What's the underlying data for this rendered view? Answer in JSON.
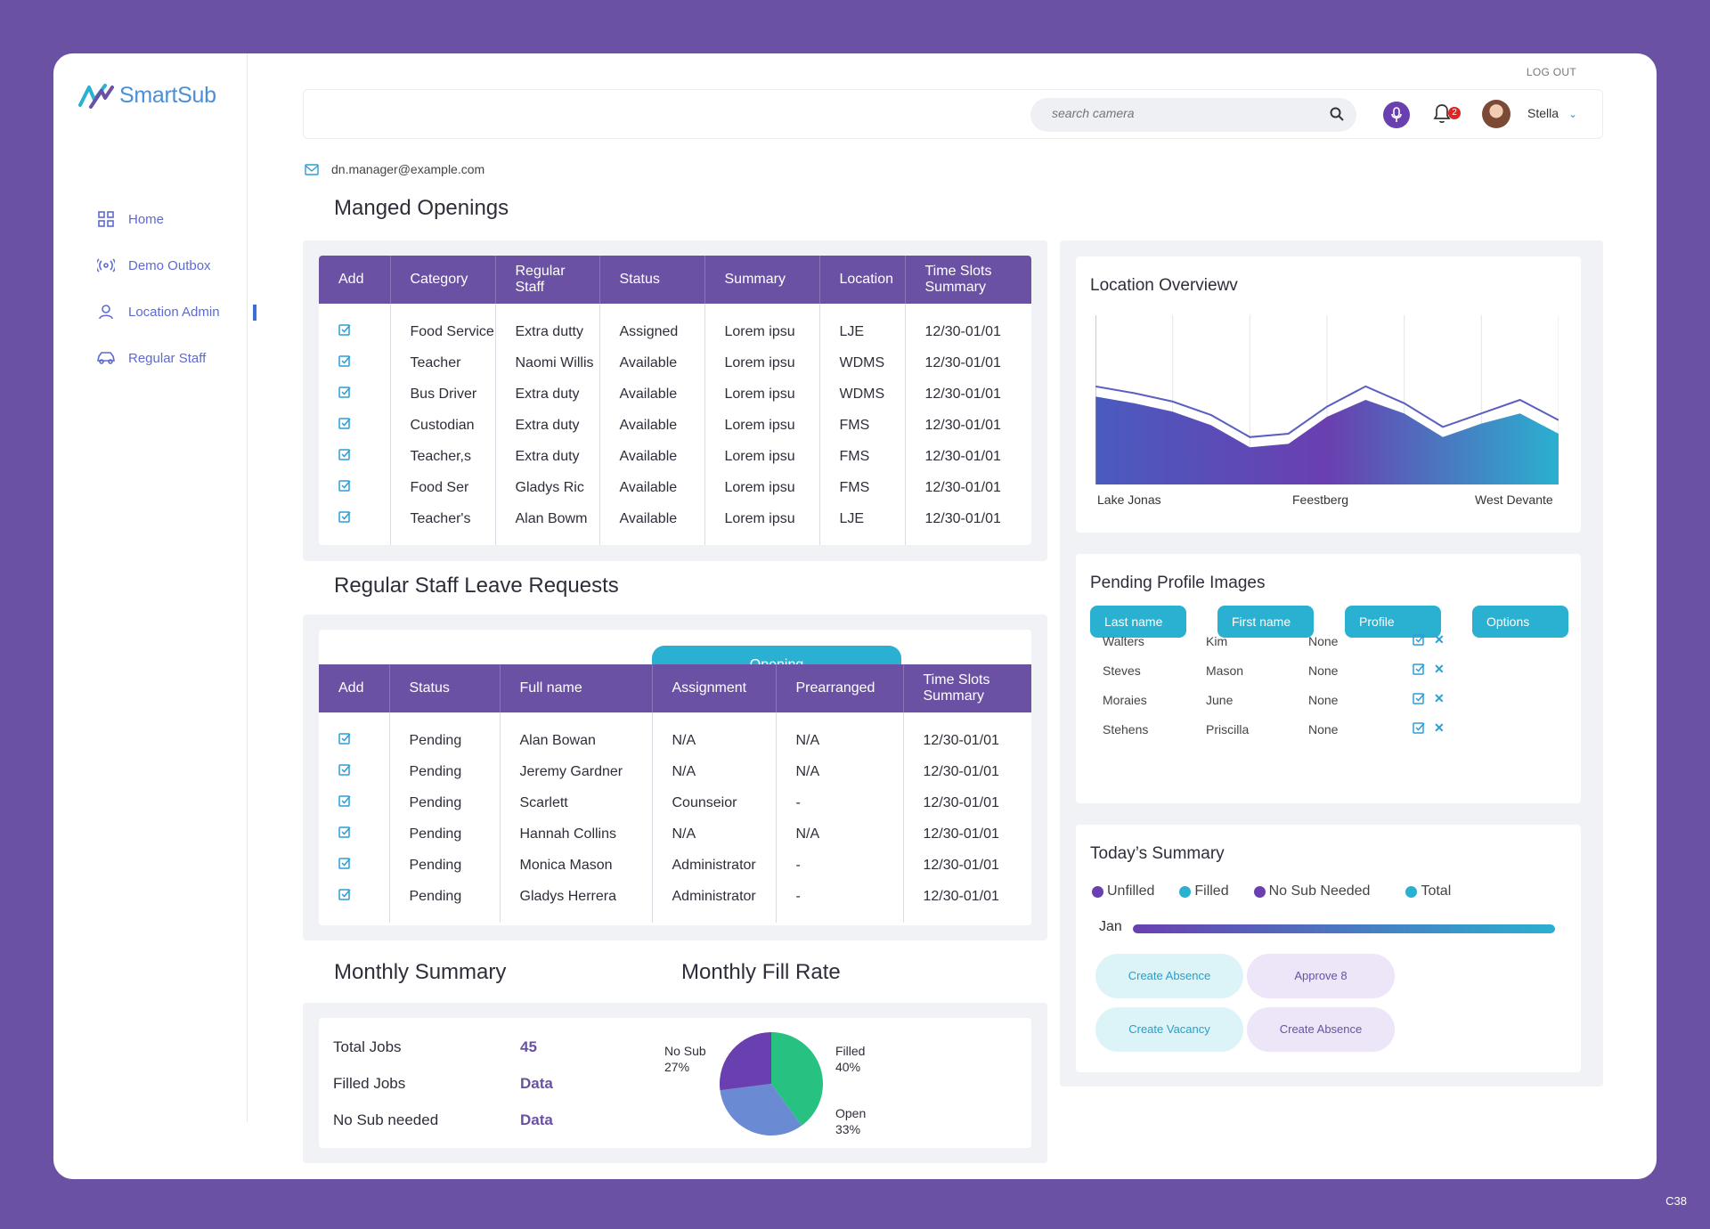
{
  "app": {
    "brand": "SmartSub",
    "corner_code": "C38"
  },
  "sidebar": {
    "items": [
      {
        "label": "Home",
        "icon": "grid-icon"
      },
      {
        "label": "Demo Outbox",
        "icon": "broadcast-icon"
      },
      {
        "label": "Location Admin",
        "icon": "user-pin-icon",
        "active": true
      },
      {
        "label": "Regular Staff",
        "icon": "car-icon"
      }
    ]
  },
  "header": {
    "logout": "LOG OUT",
    "search_placeholder": "search camera",
    "notifications": "2",
    "user_name": "Stella"
  },
  "email": "dn.manager@example.com",
  "openings": {
    "title": "Manged Openings",
    "columns": [
      "Add",
      "Category",
      "Regular Staff",
      "Status",
      "Summary",
      "Location",
      "Time Slots Summary"
    ],
    "rows": [
      [
        "Food Service",
        "Extra dutty",
        "Assigned",
        "Lorem ipsu",
        "LJE",
        "12/30-01/01"
      ],
      [
        "Teacher",
        "Naomi Willis",
        "Available",
        "Lorem ipsu",
        "WDMS",
        "12/30-01/01"
      ],
      [
        "Bus Driver",
        "Extra duty",
        "Available",
        "Lorem ipsu",
        "WDMS",
        "12/30-01/01"
      ],
      [
        "Custodian",
        "Extra duty",
        "Available",
        "Lorem ipsu",
        "FMS",
        "12/30-01/01"
      ],
      [
        "Teacher,s",
        "Extra duty",
        "Available",
        "Lorem ipsu",
        "FMS",
        "12/30-01/01"
      ],
      [
        "Food Ser",
        "Gladys Ric",
        "Available",
        "Lorem ipsu",
        "FMS",
        "12/30-01/01"
      ],
      [
        "Teacher's",
        "Alan Bowm",
        "Available",
        "Lorem ipsu",
        "LJE",
        "12/30-01/01"
      ]
    ]
  },
  "leave": {
    "title": "Regular Staff Leave Requests",
    "tab": "Opening",
    "columns": [
      "Add",
      "Status",
      "Full name",
      "Assignment",
      "Prearranged",
      "Time Slots Summary"
    ],
    "rows": [
      [
        "Pending",
        "Alan Bowan",
        "N/A",
        "N/A",
        "12/30-01/01"
      ],
      [
        "Pending",
        "Jeremy Gardner",
        "N/A",
        "N/A",
        "12/30-01/01"
      ],
      [
        "Pending",
        "Scarlett",
        "Counseior",
        "-",
        "12/30-01/01"
      ],
      [
        "Pending",
        "Hannah Collins",
        "N/A",
        "N/A",
        "12/30-01/01"
      ],
      [
        "Pending",
        "Monica Mason",
        "Administrator",
        "-",
        "12/30-01/01"
      ],
      [
        "Pending",
        "Gladys Herrera",
        "Administrator",
        "-",
        "12/30-01/01"
      ]
    ]
  },
  "monthly_summary": {
    "title": "Monthly Summary",
    "rows": [
      {
        "label": "Total Jobs",
        "value": "45"
      },
      {
        "label": "Filled Jobs",
        "value": "Data"
      },
      {
        "label": "No Sub needed",
        "value": "Data"
      }
    ]
  },
  "fill_rate": {
    "title": "Monthly Fill Rate"
  },
  "location_overview": {
    "title": "Location Overviewv"
  },
  "pending_profiles": {
    "title": "Pending Profile Images",
    "columns": [
      "Last name",
      "First name",
      "Profile",
      "Options"
    ],
    "rows": [
      [
        "Walters",
        "Kim",
        "None"
      ],
      [
        "Steves",
        "Mason",
        "None"
      ],
      [
        "Moraies",
        "June",
        "None"
      ],
      [
        "Stehens",
        "Priscilla",
        "None"
      ]
    ]
  },
  "today": {
    "title": "Today’s Summary",
    "legend": [
      "Unfilled",
      "Filled",
      "No Sub Needed",
      "Total"
    ],
    "month": "Jan",
    "buttons": [
      "Create Absence",
      "Approve 8",
      "Create Vacancy",
      "Create Absence"
    ]
  },
  "colors": {
    "primary": "#6a51a3",
    "accent": "#2ab0d0",
    "green": "#27c281",
    "blue": "#6b8ad4"
  },
  "chart_data": [
    {
      "type": "area",
      "title": "Location Overviewv",
      "categories": [
        "Lake Jonas",
        "Feestberg",
        "West Devante"
      ],
      "x": [
        0,
        1,
        2,
        3,
        4,
        5,
        6,
        7,
        8,
        9,
        10,
        11,
        12
      ],
      "series": [
        {
          "values": [
            52,
            48,
            43,
            35,
            22,
            24,
            40,
            50,
            42,
            28,
            36,
            42,
            30
          ]
        },
        {
          "values": [
            58,
            54,
            49,
            41,
            28,
            30,
            46,
            58,
            48,
            34,
            42,
            50,
            38
          ]
        }
      ],
      "grid": true
    },
    {
      "type": "pie",
      "title": "Monthly Fill Rate",
      "series": [
        {
          "name": "Filled",
          "value": 40,
          "color": "#27c281"
        },
        {
          "name": "Open",
          "value": 33,
          "color": "#6b8ad4"
        },
        {
          "name": "No Sub",
          "value": 27,
          "color": "#6a3fb0"
        }
      ]
    },
    {
      "type": "bar",
      "categories": [
        "Jan"
      ],
      "values": [
        100
      ]
    }
  ]
}
